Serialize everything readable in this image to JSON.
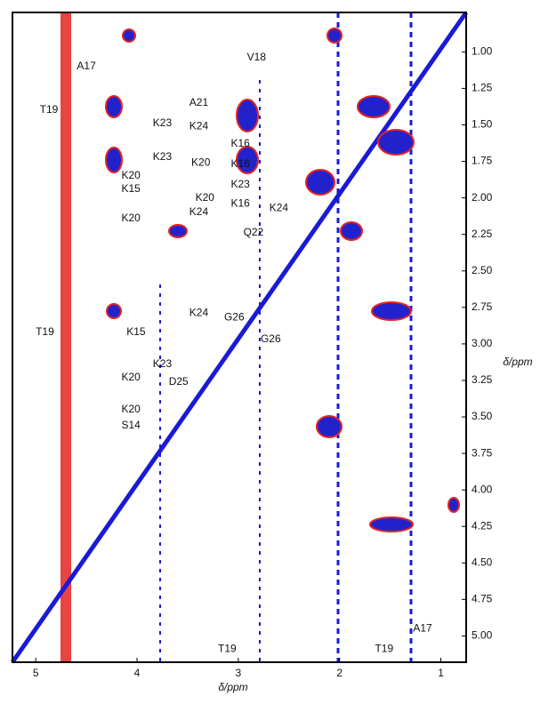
{
  "chart_data": {
    "type": "nmr2d",
    "xlabel": "δ/ppm",
    "ylabel": "δ/ppm",
    "xlim": [
      5.23,
      0.75
    ],
    "ylim": [
      0.73,
      5.18
    ],
    "xticks": [
      5,
      4,
      3,
      2,
      1
    ],
    "yticks": [
      {
        "value": 1,
        "label": "1.00"
      },
      {
        "value": 1.25,
        "label": "1.25"
      },
      {
        "value": 1.5,
        "label": "1.50"
      },
      {
        "value": 1.75,
        "label": "1.75"
      },
      {
        "value": 2,
        "label": "2.00"
      },
      {
        "value": 2.25,
        "label": "2.25"
      },
      {
        "value": 2.5,
        "label": "2.50"
      },
      {
        "value": 2.75,
        "label": "2.75"
      },
      {
        "value": 3,
        "label": "3.00"
      },
      {
        "value": 3.25,
        "label": "3.25"
      },
      {
        "value": 3.5,
        "label": "3.50"
      },
      {
        "value": 3.75,
        "label": "3.75"
      },
      {
        "value": 4,
        "label": "4.00"
      },
      {
        "value": 4.25,
        "label": "4.25"
      },
      {
        "value": 4.5,
        "label": "4.50"
      },
      {
        "value": 4.75,
        "label": "4.75"
      },
      {
        "value": 5,
        "label": "5.00"
      }
    ],
    "annotations": [
      {
        "text": "A17",
        "x": 4.5,
        "y": 1.1
      },
      {
        "text": "V18",
        "x": 2.82,
        "y": 1.04
      },
      {
        "text": "T19",
        "x": 4.87,
        "y": 1.4
      },
      {
        "text": "A21",
        "x": 3.39,
        "y": 1.35
      },
      {
        "text": "K23",
        "x": 3.75,
        "y": 1.49
      },
      {
        "text": "K24",
        "x": 3.39,
        "y": 1.51
      },
      {
        "text": "K16",
        "x": 2.98,
        "y": 1.63
      },
      {
        "text": "K23",
        "x": 3.75,
        "y": 1.72
      },
      {
        "text": "K20",
        "x": 3.37,
        "y": 1.76
      },
      {
        "text": "K16",
        "x": 2.98,
        "y": 1.77
      },
      {
        "text": "K20",
        "x": 4.06,
        "y": 1.85
      },
      {
        "text": "K15",
        "x": 4.06,
        "y": 1.94
      },
      {
        "text": "K23",
        "x": 2.98,
        "y": 1.91
      },
      {
        "text": "K20",
        "x": 3.33,
        "y": 2.0
      },
      {
        "text": "K16",
        "x": 2.98,
        "y": 2.04
      },
      {
        "text": "K24",
        "x": 3.39,
        "y": 2.1
      },
      {
        "text": "K24",
        "x": 2.6,
        "y": 2.07
      },
      {
        "text": "K20",
        "x": 4.06,
        "y": 2.14
      },
      {
        "text": "Q22",
        "x": 2.85,
        "y": 2.24
      },
      {
        "text": "K24",
        "x": 3.39,
        "y": 2.79
      },
      {
        "text": "G26",
        "x": 3.04,
        "y": 2.82
      },
      {
        "text": "T19",
        "x": 4.91,
        "y": 2.92
      },
      {
        "text": "K15",
        "x": 4.01,
        "y": 2.92
      },
      {
        "text": "G26",
        "x": 2.68,
        "y": 2.97
      },
      {
        "text": "K23",
        "x": 3.75,
        "y": 3.14
      },
      {
        "text": "K20",
        "x": 4.06,
        "y": 3.23
      },
      {
        "text": "D25",
        "x": 3.59,
        "y": 3.26
      },
      {
        "text": "K20",
        "x": 4.06,
        "y": 3.45
      },
      {
        "text": "S14",
        "x": 4.06,
        "y": 3.56
      },
      {
        "text": "T19",
        "x": 3.11,
        "y": 5.09
      },
      {
        "text": "T19",
        "x": 1.56,
        "y": 5.09
      },
      {
        "text": "A17",
        "x": 1.18,
        "y": 4.95
      }
    ]
  }
}
